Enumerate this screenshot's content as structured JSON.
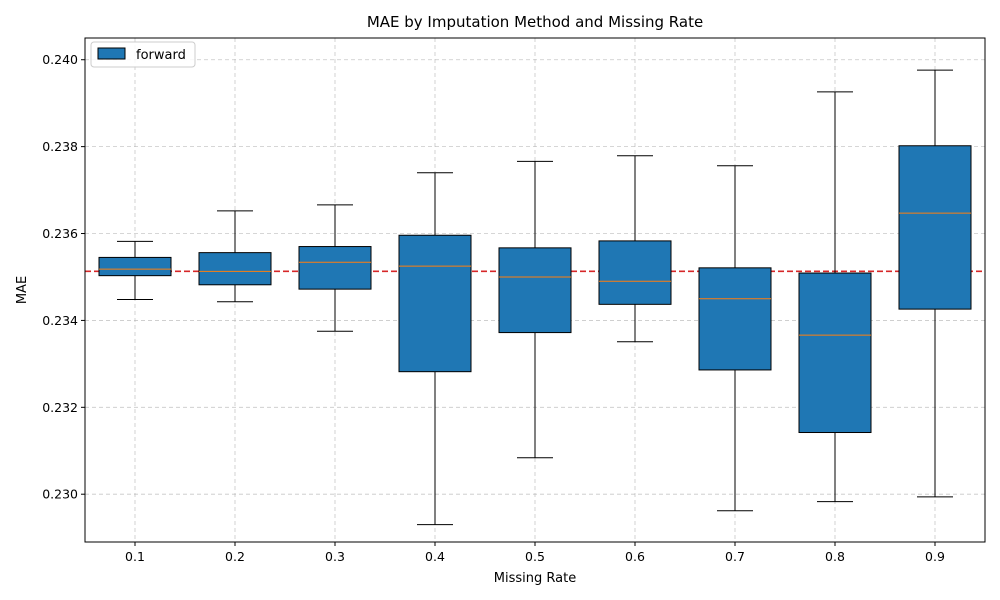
{
  "chart_data": {
    "type": "box",
    "title": "MAE by Imputation Method and Missing Rate",
    "xlabel": "Missing Rate",
    "ylabel": "MAE",
    "categories": [
      "0.1",
      "0.2",
      "0.3",
      "0.4",
      "0.5",
      "0.6",
      "0.7",
      "0.8",
      "0.9"
    ],
    "ylim": [
      0.2289,
      0.2405
    ],
    "yticks": [
      "0.230",
      "0.232",
      "0.234",
      "0.236",
      "0.238",
      "0.240"
    ],
    "grid": true,
    "legend_position": "top-left",
    "series": [
      {
        "name": "forward",
        "color": "#1f77b4",
        "median_color": "#ff7f0e",
        "boxes": [
          {
            "whislo": 0.23448,
            "q1": 0.23503,
            "median": 0.23518,
            "q3": 0.23545,
            "whishi": 0.23582
          },
          {
            "whislo": 0.23443,
            "q1": 0.23482,
            "median": 0.23513,
            "q3": 0.23556,
            "whishi": 0.23652
          },
          {
            "whislo": 0.23375,
            "q1": 0.23472,
            "median": 0.23534,
            "q3": 0.2357,
            "whishi": 0.23666
          },
          {
            "whislo": 0.2293,
            "q1": 0.23282,
            "median": 0.23525,
            "q3": 0.23596,
            "whishi": 0.2374
          },
          {
            "whislo": 0.23084,
            "q1": 0.23372,
            "median": 0.235,
            "q3": 0.23567,
            "whishi": 0.23766
          },
          {
            "whislo": 0.23351,
            "q1": 0.23437,
            "median": 0.2349,
            "q3": 0.23583,
            "whishi": 0.23779
          },
          {
            "whislo": 0.22962,
            "q1": 0.23286,
            "median": 0.2345,
            "q3": 0.23521,
            "whishi": 0.23756
          },
          {
            "whislo": 0.22983,
            "q1": 0.23142,
            "median": 0.23366,
            "q3": 0.23509,
            "whishi": 0.23926
          },
          {
            "whislo": 0.22994,
            "q1": 0.23426,
            "median": 0.23647,
            "q3": 0.23802,
            "whishi": 0.23976
          }
        ]
      }
    ],
    "reference_line": {
      "y": 0.23513,
      "color": "#d62728",
      "style": "dashed"
    }
  }
}
